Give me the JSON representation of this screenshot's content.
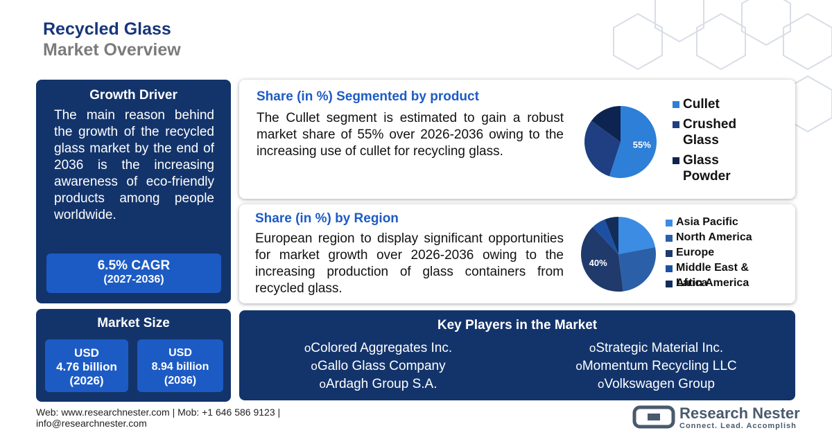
{
  "header": {
    "title": "Recycled Glass",
    "subtitle": "Market Overview"
  },
  "growth_driver": {
    "heading": "Growth Driver",
    "text": "The main reason behind the growth of the recycled glass market by the end of 2036 is the increasing awareness of eco-friendly products among people worldwide.",
    "cagr": "6.5% CAGR",
    "period": "(2027-2036)"
  },
  "market_size": {
    "heading": "Market Size",
    "items": [
      {
        "currency": "USD",
        "amount": "4.76 billion",
        "year": "(2026)"
      },
      {
        "currency": "USD",
        "amount": "8.94 billion",
        "year": "(2036)"
      }
    ]
  },
  "product_share": {
    "heading": "Share (in %) Segmented by product",
    "text": "The Cullet segment is estimated to gain a robust market share of 55% over 2026-2036 owing to the increasing use of cullet for recycling glass.",
    "chart": {
      "type": "pie",
      "categories": [
        "Cullet",
        "Crushed Glass",
        "Glass Powder"
      ],
      "values": [
        55,
        30,
        15
      ],
      "value_labels": [
        "55%",
        null,
        null
      ],
      "colors": [
        "#2d7fd8",
        "#1f3f82",
        "#0e2450"
      ]
    }
  },
  "region_share": {
    "heading": "Share (in %) by Region",
    "text": "European region to display significant opportunities for market growth over 2026-2036 owing to the increasing production of glass containers from recycled glass.",
    "chart": {
      "type": "pie",
      "categories": [
        "Asia Pacific",
        "North America",
        "Europe",
        "Middle East & Africa",
        "Latin America"
      ],
      "values": [
        22,
        26,
        40,
        6,
        6
      ],
      "value_labels": [
        null,
        null,
        "40%",
        null,
        null
      ],
      "colors": [
        "#3b8ce2",
        "#2b5fa8",
        "#1f3a6b",
        "#1c50a3",
        "#132d5a"
      ]
    }
  },
  "key_players": {
    "heading": "Key Players in the Market",
    "companies": [
      "Colored Aggregates Inc.",
      "Strategic Material Inc.",
      "Gallo Glass Company",
      "Momentum Recycling LLC",
      "Ardagh Group S.A.",
      "Volkswagen Group"
    ]
  },
  "footer": {
    "contact": "Web: www.researchnester.com | Mob: +1 646 586 9123 |",
    "email": "info@researchnester.com",
    "brand": "Research Nester",
    "tagline": "Connect. Lead. Accomplish"
  }
}
